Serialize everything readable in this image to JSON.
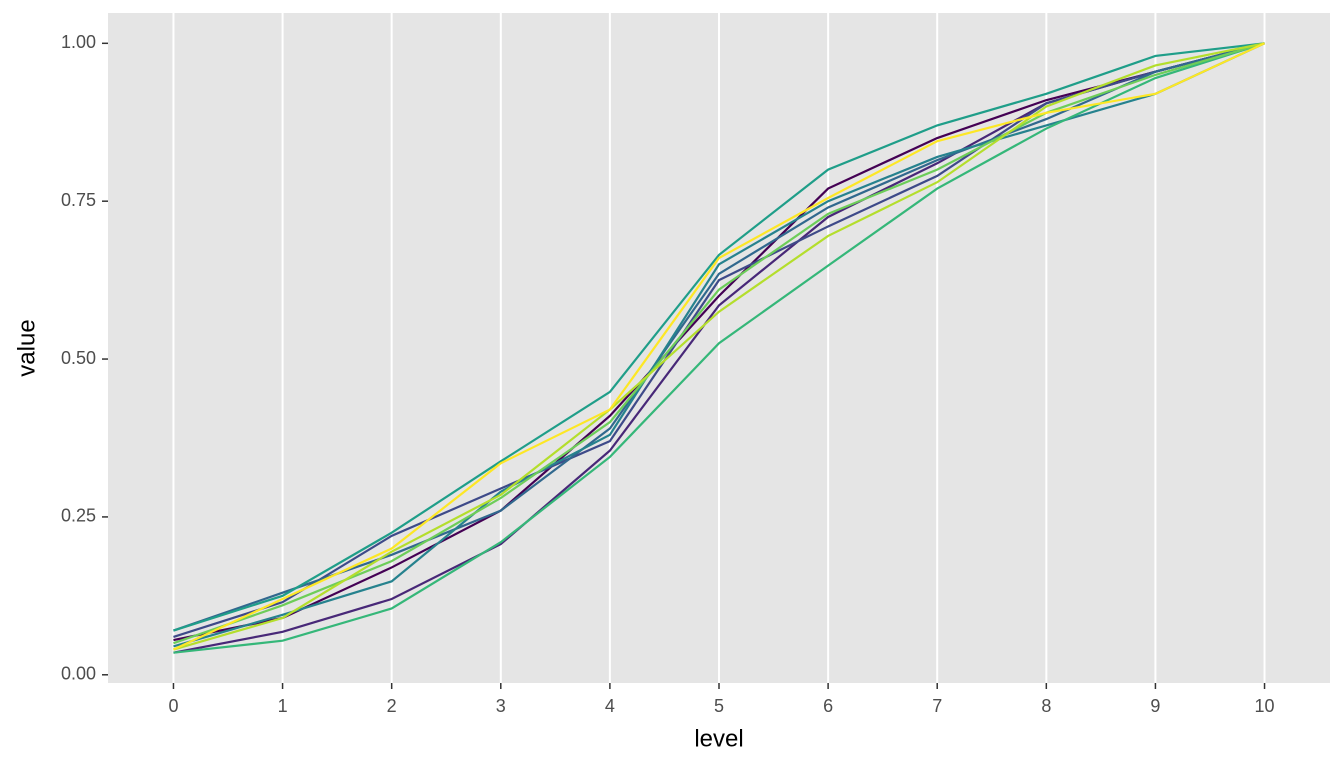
{
  "chart_data": {
    "type": "line",
    "x_label": "level",
    "y_label": "value",
    "x": [
      0,
      1,
      2,
      3,
      4,
      5,
      6,
      7,
      8,
      9,
      10
    ],
    "series": [
      {
        "color": "#440154",
        "values": [
          0.055,
          0.09,
          0.17,
          0.26,
          0.41,
          0.6,
          0.77,
          0.85,
          0.91,
          0.955,
          1
        ]
      },
      {
        "color": "#482878",
        "values": [
          0.035,
          0.068,
          0.12,
          0.207,
          0.355,
          0.585,
          0.725,
          0.81,
          0.905,
          0.955,
          1
        ]
      },
      {
        "color": "#3E4A89",
        "values": [
          0.06,
          0.115,
          0.22,
          0.295,
          0.37,
          0.625,
          0.71,
          0.79,
          0.905,
          0.955,
          1
        ]
      },
      {
        "color": "#31688E",
        "values": [
          0.07,
          0.13,
          0.19,
          0.26,
          0.39,
          0.635,
          0.74,
          0.815,
          0.88,
          0.955,
          1
        ]
      },
      {
        "color": "#26828E",
        "values": [
          0.045,
          0.095,
          0.148,
          0.29,
          0.38,
          0.65,
          0.75,
          0.82,
          0.87,
          0.92,
          1
        ]
      },
      {
        "color": "#1F9E89",
        "values": [
          0.07,
          0.125,
          0.225,
          0.338,
          0.448,
          0.665,
          0.8,
          0.87,
          0.92,
          0.98,
          1
        ]
      },
      {
        "color": "#35B779",
        "values": [
          0.035,
          0.054,
          0.105,
          0.21,
          0.345,
          0.525,
          0.648,
          0.77,
          0.865,
          0.945,
          1
        ]
      },
      {
        "color": "#6DCD59",
        "values": [
          0.05,
          0.11,
          0.18,
          0.28,
          0.4,
          0.61,
          0.73,
          0.8,
          0.89,
          0.95,
          1
        ]
      },
      {
        "color": "#B4DE2C",
        "values": [
          0.04,
          0.09,
          0.195,
          0.285,
          0.42,
          0.575,
          0.695,
          0.78,
          0.9,
          0.965,
          1
        ]
      },
      {
        "color": "#FDE725",
        "values": [
          0.04,
          0.12,
          0.2,
          0.335,
          0.42,
          0.66,
          0.755,
          0.845,
          0.89,
          0.92,
          1
        ]
      }
    ],
    "xlim": [
      -0.6,
      10.6
    ],
    "xticks": [
      0,
      1,
      2,
      3,
      4,
      5,
      6,
      7,
      8,
      9,
      10
    ],
    "ylim": [
      -0.013,
      1.048
    ],
    "yticks": [
      {
        "value": 0,
        "label": "0.00"
      },
      {
        "value": 0.25,
        "label": "0.25"
      },
      {
        "value": 0.5,
        "label": "0.50"
      },
      {
        "value": 0.75,
        "label": "0.75"
      },
      {
        "value": 1,
        "label": "1.00"
      }
    ],
    "grid": "x",
    "panel_color": "#E5E5E5"
  }
}
